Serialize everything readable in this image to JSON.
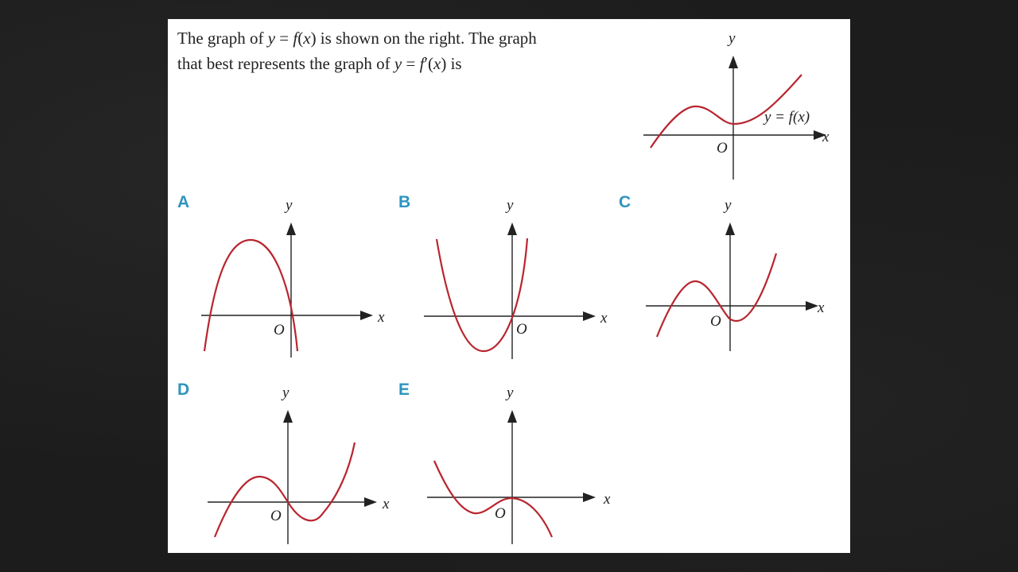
{
  "question": {
    "line1_a": "The graph of ",
    "line1_y": "y",
    "line1_b": " = ",
    "line1_f": "f",
    "line1_c": "(",
    "line1_x": "x",
    "line1_d": ") is shown on the right. The graph",
    "line2_a": "that best represents the graph of ",
    "line2_y": "y",
    "line2_b": " = ",
    "line2_f": "f",
    "line2_c": "′(",
    "line2_x": "x",
    "line2_d": ") is"
  },
  "main_graph": {
    "y_axis": "y",
    "x_axis": "x",
    "origin": "O",
    "curve_label": "y = f(x)"
  },
  "options": [
    {
      "label": "A",
      "y_axis": "y",
      "x_axis": "x",
      "origin": "O"
    },
    {
      "label": "B",
      "y_axis": "y",
      "x_axis": "x",
      "origin": "O"
    },
    {
      "label": "C",
      "y_axis": "y",
      "x_axis": "x",
      "origin": "O"
    },
    {
      "label": "D",
      "y_axis": "y",
      "x_axis": "x",
      "origin": "O"
    },
    {
      "label": "E",
      "y_axis": "y",
      "x_axis": "x",
      "origin": "O"
    }
  ],
  "colors": {
    "curve": "#b8262f",
    "option_label": "#2e94bf",
    "background": "#1c1c1c"
  }
}
